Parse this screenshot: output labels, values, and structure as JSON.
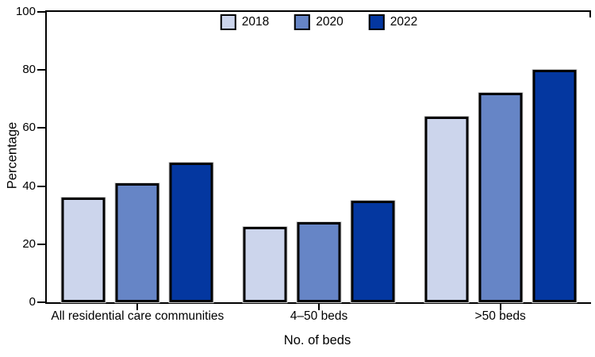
{
  "chart_data": {
    "type": "bar",
    "title": "",
    "categories": [
      "All residential care communities",
      "4–50 beds",
      ">50 beds"
    ],
    "series": [
      {
        "name": "2018",
        "color": "#ccd5ec",
        "values": [
          36,
          26,
          64
        ]
      },
      {
        "name": "2020",
        "color": "#6685c6",
        "values": [
          41,
          27.5,
          72
        ]
      },
      {
        "name": "2022",
        "color": "#0437a0",
        "values": [
          48,
          35,
          80
        ]
      }
    ],
    "xlabel": "No. of beds",
    "ylabel": "Percentage",
    "ylim": [
      0,
      100
    ],
    "yticks": [
      0,
      20,
      40,
      60,
      80,
      100
    ],
    "grid": false,
    "legend_position": "top-center",
    "bar_border_color": "#000000",
    "axis_color": "#000000"
  }
}
